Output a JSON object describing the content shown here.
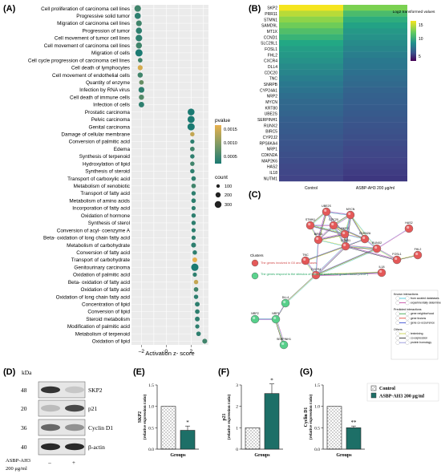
{
  "panels": {
    "A": "(A)",
    "B": "(B)",
    "C": "(C)",
    "D": "(D)",
    "E": "(E)",
    "F": "(F)",
    "G": "(G)"
  },
  "panelA": {
    "categories": [
      {
        "label": "Cell proliferation of carcinoma cell lines",
        "z": -2.3,
        "p": 0.0006,
        "count": 230
      },
      {
        "label": "Progressive solid tumor",
        "z": -2.3,
        "p": 0.0005,
        "count": 180
      },
      {
        "label": "Migration of carcinoma cell lines",
        "z": -2.2,
        "p": 0.0006,
        "count": 150
      },
      {
        "label": "Progression of tumor",
        "z": -2.2,
        "p": 0.0005,
        "count": 190
      },
      {
        "label": "Cell movement of tumor cell lines",
        "z": -2.2,
        "p": 0.0005,
        "count": 240
      },
      {
        "label": "Cell movement of carcinoma cell lines",
        "z": -2.2,
        "p": 0.0006,
        "count": 180
      },
      {
        "label": "Migration of cells",
        "z": -2.2,
        "p": 0.0004,
        "count": 320
      },
      {
        "label": "Cell cycle progression of carcinoma cell lines",
        "z": -2.1,
        "p": 0.0006,
        "count": 60
      },
      {
        "label": "Cell death of lymphocytes",
        "z": -2.1,
        "p": 0.0014,
        "count": 90
      },
      {
        "label": "Cell movement of endothelial cells",
        "z": -2.1,
        "p": 0.0006,
        "count": 100
      },
      {
        "label": "Quantity of enzyme",
        "z": -2.0,
        "p": 0.0008,
        "count": 60
      },
      {
        "label": "Infection by RNA virus",
        "z": -2.0,
        "p": 0.0005,
        "count": 160
      },
      {
        "label": "Cell death of immune cells",
        "z": -2.0,
        "p": 0.0007,
        "count": 100
      },
      {
        "label": "Infection of cells",
        "z": -2.0,
        "p": 0.0005,
        "count": 130
      },
      {
        "label": "Prostatic carcinoma",
        "z": 2.0,
        "p": 0.0004,
        "count": 270
      },
      {
        "label": "Pelvic carcinoma",
        "z": 2.0,
        "p": 0.0004,
        "count": 300
      },
      {
        "label": "Genital carcinoma",
        "z": 2.0,
        "p": 0.0004,
        "count": 320
      },
      {
        "label": "Damage of cellular membrane",
        "z": 2.1,
        "p": 0.0013,
        "count": 50
      },
      {
        "label": "Conversion of palmitic acid",
        "z": 2.1,
        "p": 0.0005,
        "count": 40
      },
      {
        "label": "Edema",
        "z": 2.1,
        "p": 0.0006,
        "count": 60
      },
      {
        "label": "Synthesis of terpenoid",
        "z": 2.1,
        "p": 0.0005,
        "count": 50
      },
      {
        "label": "Hydroxylation of lipid",
        "z": 2.1,
        "p": 0.0006,
        "count": 50
      },
      {
        "label": "Synthesis of steroid",
        "z": 2.1,
        "p": 0.0005,
        "count": 50
      },
      {
        "label": "Transport of carboxylic acid",
        "z": 2.2,
        "p": 0.0005,
        "count": 60
      },
      {
        "label": "Metabolism of xenobiotic",
        "z": 2.2,
        "p": 0.0006,
        "count": 60
      },
      {
        "label": "Transport of fatty acid",
        "z": 2.2,
        "p": 0.0005,
        "count": 50
      },
      {
        "label": "Metabolism of amino acids",
        "z": 2.2,
        "p": 0.0005,
        "count": 60
      },
      {
        "label": "Incorporation of fatty acid",
        "z": 2.2,
        "p": 0.0005,
        "count": 40
      },
      {
        "label": "Oxidation of hormone",
        "z": 2.2,
        "p": 0.0005,
        "count": 50
      },
      {
        "label": "Synthesis of sterol",
        "z": 2.2,
        "p": 0.0005,
        "count": 50
      },
      {
        "label": "Conversion of acyl- coenzyme A",
        "z": 2.2,
        "p": 0.0005,
        "count": 40
      },
      {
        "label": "Beta- oxidation of long chain fatty acid",
        "z": 2.2,
        "p": 0.0005,
        "count": 40
      },
      {
        "label": "Metabolism of carbohydrate",
        "z": 2.2,
        "p": 0.0005,
        "count": 80
      },
      {
        "label": "Conversion of fatty acid",
        "z": 2.3,
        "p": 0.0005,
        "count": 50
      },
      {
        "label": "Transport of carbohydrate",
        "z": 2.3,
        "p": 0.0015,
        "count": 70
      },
      {
        "label": "Genitourinary carcinoma",
        "z": 2.3,
        "p": 0.0004,
        "count": 330
      },
      {
        "label": "Oxidation of palmitic acid",
        "z": 2.3,
        "p": 0.0005,
        "count": 40
      },
      {
        "label": "Beta- oxidation of fatty acid",
        "z": 2.4,
        "p": 0.0013,
        "count": 50
      },
      {
        "label": "Oxidation of fatty acid",
        "z": 2.4,
        "p": 0.0006,
        "count": 60
      },
      {
        "label": "Oxidation of long chain fatty acid",
        "z": 2.4,
        "p": 0.0005,
        "count": 50
      },
      {
        "label": "Concentration of lipid",
        "z": 2.5,
        "p": 0.0005,
        "count": 70
      },
      {
        "label": "Conversion of lipid",
        "z": 2.5,
        "p": 0.0005,
        "count": 60
      },
      {
        "label": "Steroid metabolism",
        "z": 2.5,
        "p": 0.0005,
        "count": 70
      },
      {
        "label": "Modification of palmitic acid",
        "z": 2.5,
        "p": 0.0005,
        "count": 40
      },
      {
        "label": "Metabolism of terpenoid",
        "z": 2.6,
        "p": 0.0005,
        "count": 60
      },
      {
        "label": "Oxidation of lipid",
        "z": 3.1,
        "p": 0.0006,
        "count": 80
      }
    ],
    "xticks": [
      "-2",
      "0",
      "2"
    ],
    "xlabel": "Activation z- score",
    "pvalue_title": "pvalue",
    "pvalue_ticks": [
      "0.0015",
      "0.0010",
      "0.0005"
    ],
    "count_title": "count",
    "count_ticks": [
      "100",
      "200",
      "300"
    ],
    "color_low": "#1b7a72",
    "color_high": "#e8b04c"
  },
  "panelB": {
    "genes": [
      "SKP2",
      "PRR11",
      "STMN1",
      "SAMD9L",
      "MT1X",
      "CCND1",
      "SLC29L1",
      "FOSL1",
      "FHL2",
      "CXCR4",
      "DLL4",
      "CDC20",
      "TNC",
      "SNRPB",
      "CYP24A1",
      "NRP2",
      "MYCN",
      "KRT80",
      "UBE2S",
      "SERPINH1",
      "RUNX2",
      "BIRC5",
      "CYP2J2",
      "RPS6KA4",
      "NRP1",
      "CDKN2A",
      "MAP2K6",
      "HAS2",
      "IL18",
      "NUTM1"
    ],
    "control": [
      15.6,
      14.3,
      13.4,
      12.8,
      12.3,
      11.9,
      11.5,
      11.2,
      11.0,
      10.8,
      10.6,
      10.4,
      10.2,
      10.0,
      9.8,
      9.6,
      9.4,
      9.3,
      9.2,
      9.0,
      8.9,
      8.8,
      8.7,
      8.6,
      8.5,
      8.4,
      8.3,
      8.2,
      8.1,
      8.0
    ],
    "treated": [
      13.0,
      12.2,
      11.7,
      11.3,
      11.0,
      10.8,
      10.6,
      10.4,
      10.2,
      10.0,
      9.9,
      9.7,
      9.5,
      9.4,
      9.2,
      9.1,
      9.0,
      8.9,
      8.8,
      8.7,
      8.6,
      8.5,
      8.4,
      8.3,
      8.2,
      8.1,
      8.0,
      7.9,
      7.8,
      7.7
    ],
    "columns": [
      "Control",
      "ASBP-AH3 200 μg/ml"
    ],
    "legend_title": "Log2 transformed values",
    "legend_ticks": [
      "15",
      "10",
      "5"
    ]
  },
  "panelC": {
    "nodes": [
      {
        "id": "UBE2S",
        "cluster": "red"
      },
      {
        "id": "MYCN",
        "cluster": "red"
      },
      {
        "id": "STMN1",
        "cluster": "red"
      },
      {
        "id": "CDC20",
        "cluster": "red"
      },
      {
        "id": "SKP2",
        "cluster": "red"
      },
      {
        "id": "CDKN2A",
        "cluster": "red"
      },
      {
        "id": "BIRC5",
        "cluster": "red"
      },
      {
        "id": "CCND1",
        "cluster": "red"
      },
      {
        "id": "RUNX2",
        "cluster": "red"
      },
      {
        "id": "HAS2",
        "cluster": "red"
      },
      {
        "id": "TNC",
        "cluster": "red"
      },
      {
        "id": "FOSL1",
        "cluster": "red"
      },
      {
        "id": "FHL2",
        "cluster": "red"
      },
      {
        "id": "CXCR4",
        "cluster": "red"
      },
      {
        "id": "IL18",
        "cluster": "red"
      },
      {
        "id": "DLL4",
        "cluster": "green"
      },
      {
        "id": "NRP1",
        "cluster": "green"
      },
      {
        "id": "NRP2",
        "cluster": "green"
      },
      {
        "id": "SERPINH1",
        "cluster": "green"
      }
    ],
    "clusters_title": "Clusters",
    "cluster_red_label": "The genes involved in G0 and G1 phases",
    "cluster_green_label": "The genes respond to the stimulus of vascular endothelial growth factor (VEGF)",
    "legend_sections": [
      {
        "title": "Known interactions",
        "items": [
          {
            "label": "from curated databases",
            "color": "#35c2d4"
          },
          {
            "label": "experimentally determined",
            "color": "#c23fa0"
          }
        ]
      },
      {
        "title": "Predicted interactions",
        "items": [
          {
            "label": "gene neighborhood",
            "color": "#2a9d3a"
          },
          {
            "label": "gene fusions",
            "color": "#e03a2a"
          },
          {
            "label": "gene co-occurrence",
            "color": "#2b3fd1"
          }
        ]
      },
      {
        "title": "Others",
        "items": [
          {
            "label": "textmining",
            "color": "#c7cf3a"
          },
          {
            "label": "co-expression",
            "color": "#222222"
          },
          {
            "label": "protein homology",
            "color": "#8a8ad8"
          }
        ]
      }
    ]
  },
  "panelD": {
    "kda_label": "kDa",
    "markers": [
      "48",
      "20",
      "36",
      "40"
    ],
    "bands": [
      "SKP2",
      "p21",
      "Cyclin D1",
      "β-actin"
    ],
    "band_intensity": [
      [
        0.85,
        0.15
      ],
      [
        0.2,
        0.75
      ],
      [
        0.6,
        0.4
      ],
      [
        0.9,
        0.9
      ]
    ],
    "treatment_label": "ASBP-AH3\n200 μg/ml",
    "treatment_line1": "ASBP-AH3",
    "treatment_line2": "200 μg/ml",
    "lane_labels": [
      "–",
      "+"
    ]
  },
  "bars": [
    {
      "panel": "E",
      "ylabel": "SKP2",
      "ylabel2": "(relative expression ratio)",
      "yticks": [
        "0.0",
        "0.5",
        "1.0",
        "1.5"
      ],
      "ymax": 1.5,
      "values": [
        1.0,
        0.44
      ],
      "errors": [
        0,
        0.1
      ],
      "sig": "*",
      "xlabel": "Groups"
    },
    {
      "panel": "F",
      "ylabel": "p21",
      "ylabel2": "(relative expression ratio)",
      "yticks": [
        "0",
        "1",
        "2",
        "3"
      ],
      "ymax": 3,
      "values": [
        1.0,
        2.6
      ],
      "errors": [
        0,
        0.45
      ],
      "sig": "*",
      "xlabel": "Groups"
    },
    {
      "panel": "G",
      "ylabel": "Cyclin D1",
      "ylabel2": "(relative expression ratio)",
      "yticks": [
        "0.0",
        "0.5",
        "1.0",
        "1.5"
      ],
      "ymax": 1.5,
      "values": [
        1.0,
        0.5
      ],
      "errors": [
        0,
        0.04
      ],
      "sig": "**",
      "xlabel": "Groups"
    }
  ],
  "legendBars": {
    "control": "Control",
    "treated": "ASBP-AH3 200 μg/ml"
  },
  "colors": {
    "teal": "#1d6f67",
    "dots": "#9a9a9a"
  }
}
